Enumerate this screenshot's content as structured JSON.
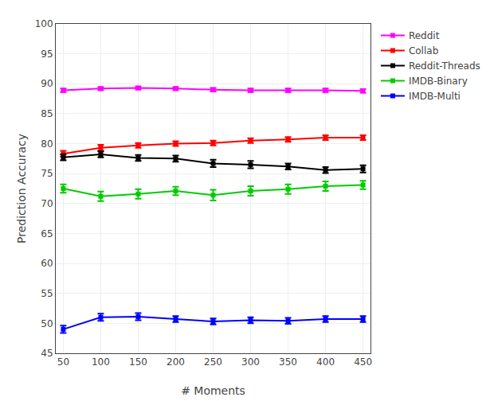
{
  "chart_data": {
    "type": "line",
    "xlabel": "# Moments",
    "ylabel": "Prediction Accuracy",
    "x": [
      50,
      100,
      150,
      200,
      250,
      300,
      350,
      400,
      450
    ],
    "series": [
      {
        "name": "Reddit",
        "color": "#FF00FF",
        "marker": "square",
        "line_style": "solid",
        "values": [
          88.9,
          89.2,
          89.3,
          89.2,
          89.0,
          88.9,
          88.9,
          88.9,
          88.8
        ],
        "yerr": [
          0.3,
          0.25,
          0.25,
          0.25,
          0.3,
          0.3,
          0.3,
          0.3,
          0.3
        ]
      },
      {
        "name": "Collab",
        "color": "#FF0000",
        "marker": "square",
        "line_style": "solid",
        "values": [
          78.3,
          79.3,
          79.7,
          80.0,
          80.1,
          80.5,
          80.7,
          81.0,
          81.0
        ],
        "yerr": [
          0.5,
          0.5,
          0.4,
          0.4,
          0.4,
          0.4,
          0.4,
          0.4,
          0.4
        ]
      },
      {
        "name": "Reddit-Threads",
        "color": "#000000",
        "marker": "square",
        "line_style": "solid",
        "values": [
          77.7,
          78.2,
          77.6,
          77.5,
          76.7,
          76.5,
          76.2,
          75.6,
          75.8
        ],
        "yerr": [
          0.5,
          0.5,
          0.5,
          0.5,
          0.6,
          0.6,
          0.5,
          0.5,
          0.6
        ]
      },
      {
        "name": "IMDB-Binary",
        "color": "#00CC00",
        "marker": "square",
        "line_style": "solid",
        "values": [
          72.5,
          71.2,
          71.6,
          72.1,
          71.4,
          72.1,
          72.4,
          72.9,
          73.1
        ],
        "yerr": [
          0.7,
          0.8,
          0.8,
          0.7,
          0.9,
          0.8,
          0.8,
          0.8,
          0.7
        ]
      },
      {
        "name": "IMDB-Multi",
        "color": "#0000FF",
        "marker": "square",
        "line_style": "solid",
        "values": [
          49.0,
          51.0,
          51.1,
          50.7,
          50.3,
          50.5,
          50.4,
          50.7,
          50.7
        ],
        "yerr": [
          0.6,
          0.6,
          0.6,
          0.5,
          0.5,
          0.5,
          0.5,
          0.5,
          0.5
        ]
      }
    ],
    "xlim": [
      40,
      460
    ],
    "ylim": [
      45,
      100
    ],
    "xticks": [
      50,
      100,
      150,
      200,
      250,
      300,
      350,
      400,
      450
    ],
    "yticks": [
      45,
      50,
      55,
      60,
      65,
      70,
      75,
      80,
      85,
      90,
      95,
      100
    ],
    "grid": true,
    "legend": "upper right"
  }
}
